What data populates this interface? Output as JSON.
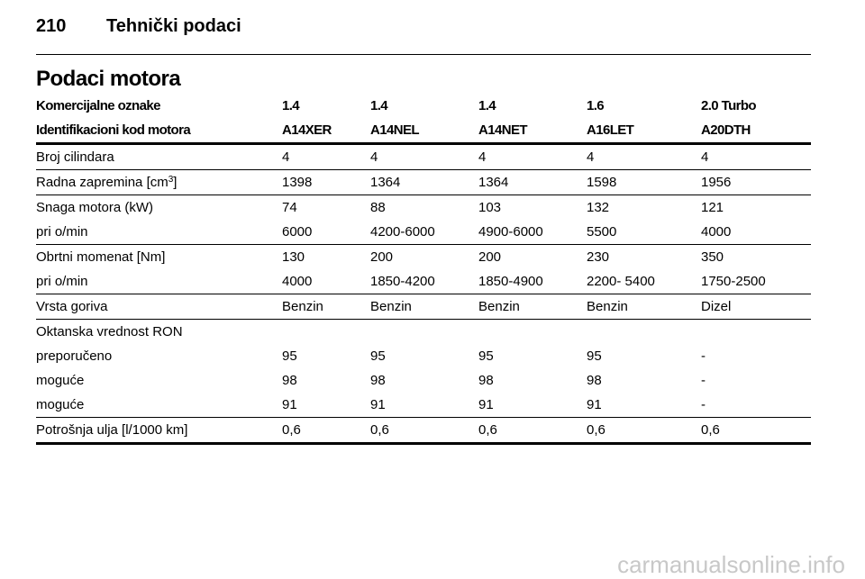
{
  "header": {
    "page": "210",
    "title": "Tehnički podaci"
  },
  "section_title": "Podaci motora",
  "table": {
    "head": [
      [
        "Komercijalne oznake",
        "1.4",
        "1.4",
        "1.4",
        "1.6",
        "2.0 Turbo"
      ],
      [
        "Identifikacioni kod motora",
        "A14XER",
        "A14NEL",
        "A14NET",
        "A16LET",
        "A20DTH"
      ]
    ],
    "groups": [
      [
        {
          "label": "Broj cilindara",
          "values": [
            "4",
            "4",
            "4",
            "4",
            "4"
          ]
        }
      ],
      [
        {
          "label": [
            "Radna zapremina [cm",
            "3",
            "]"
          ],
          "values": [
            "1398",
            "1364",
            "1364",
            "1598",
            "1956"
          ]
        }
      ],
      [
        {
          "label": "Snaga motora (kW)",
          "values": [
            "74",
            "88",
            "103",
            "132",
            "121"
          ]
        },
        {
          "label": "pri o/min",
          "values": [
            "6000",
            "4200-6000",
            "4900-6000",
            "5500",
            "4000"
          ]
        }
      ],
      [
        {
          "label": "Obrtni momenat [Nm]",
          "values": [
            "130",
            "200",
            "200",
            "230",
            "350"
          ]
        },
        {
          "label": "pri o/min",
          "values": [
            "4000",
            "1850-4200",
            "1850-4900",
            "2200- 5400",
            "1750-2500"
          ]
        }
      ],
      [
        {
          "label": "Vrsta goriva",
          "values": [
            "Benzin",
            "Benzin",
            "Benzin",
            "Benzin",
            "Dizel"
          ]
        }
      ],
      [
        {
          "label": "Oktanska vrednost RON",
          "values": []
        },
        {
          "label": "preporučeno",
          "values": [
            "95",
            "95",
            "95",
            "95",
            "-"
          ]
        },
        {
          "label": "moguće",
          "values": [
            "98",
            "98",
            "98",
            "98",
            "-"
          ]
        },
        {
          "label": "moguće",
          "values": [
            "91",
            "91",
            "91",
            "91",
            "-"
          ]
        }
      ],
      [
        {
          "label": "Potrošnja ulja [l/1000 km]",
          "values": [
            "0,6",
            "0,6",
            "0,6",
            "0,6",
            "0,6"
          ]
        }
      ]
    ]
  },
  "watermark": "carmanualsonline.info"
}
